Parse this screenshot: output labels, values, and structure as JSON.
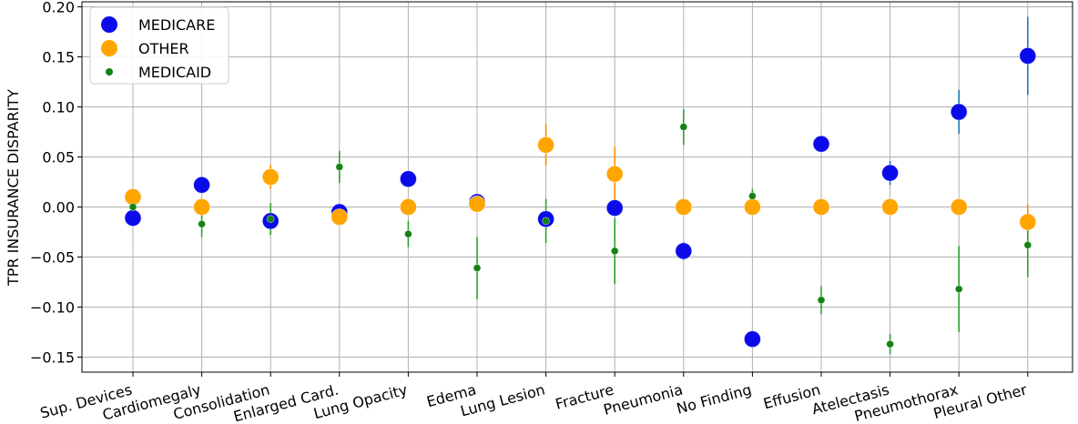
{
  "chart_data": {
    "type": "scatter",
    "title": "",
    "xlabel": "",
    "ylabel": "TPR INSURANCE DISPARITY",
    "ylim": [
      -0.165,
      0.205
    ],
    "yticks": [
      0.2,
      0.15,
      0.1,
      0.05,
      0.0,
      -0.05,
      -0.1,
      -0.15
    ],
    "ytick_labels": [
      "0.20",
      "0.15",
      "0.10",
      "0.05",
      "0.00",
      "−0.05",
      "−0.10",
      "−0.15"
    ],
    "grid": true,
    "legend_position": "top-left",
    "categories": [
      "Sup. Devices",
      "Cardiomegaly",
      "Consolidation",
      "Enlarged Card.",
      "Lung Opacity",
      "Edema",
      "Lung Lesion",
      "Fracture",
      "Pneumonia",
      "No Finding",
      "Effusion",
      "Atelectasis",
      "Pneumothorax",
      "Pleural Other"
    ],
    "series": [
      {
        "name": "MEDICARE",
        "color": "#0b0bea",
        "errcolor": "#1f77b4",
        "marker_radius": 9,
        "values": [
          -0.011,
          0.022,
          -0.014,
          -0.005,
          0.028,
          0.005,
          -0.012,
          -0.001,
          -0.044,
          -0.132,
          0.063,
          0.034,
          0.095,
          0.151
        ],
        "errors": [
          0.004,
          0.004,
          0.004,
          0.004,
          0.004,
          0.004,
          0.004,
          0.004,
          0.009,
          0.004,
          0.004,
          0.012,
          0.022,
          0.039
        ]
      },
      {
        "name": "OTHER",
        "color": "#ffa500",
        "errcolor": "#ff8c00",
        "marker_radius": 9,
        "values": [
          0.01,
          0.0,
          0.03,
          -0.01,
          0.0,
          0.003,
          0.062,
          0.033,
          0.0,
          0.0,
          0.0,
          0.0,
          0.0,
          -0.015
        ],
        "errors": [
          0.004,
          0.004,
          0.012,
          0.004,
          0.004,
          0.004,
          0.021,
          0.027,
          0.004,
          0.004,
          0.004,
          0.004,
          0.004,
          0.018
        ]
      },
      {
        "name": "MEDICAID",
        "color": "#148214",
        "errcolor": "#2ca02c",
        "marker_radius": 4,
        "values": [
          0.0,
          -0.017,
          -0.012,
          0.04,
          -0.027,
          -0.061,
          -0.014,
          -0.044,
          0.08,
          0.011,
          -0.093,
          -0.137,
          -0.082,
          -0.038
        ],
        "errors": [
          0.004,
          0.013,
          0.016,
          0.016,
          0.013,
          0.031,
          0.022,
          0.033,
          0.018,
          0.007,
          0.014,
          0.01,
          0.043,
          0.032
        ]
      }
    ]
  }
}
